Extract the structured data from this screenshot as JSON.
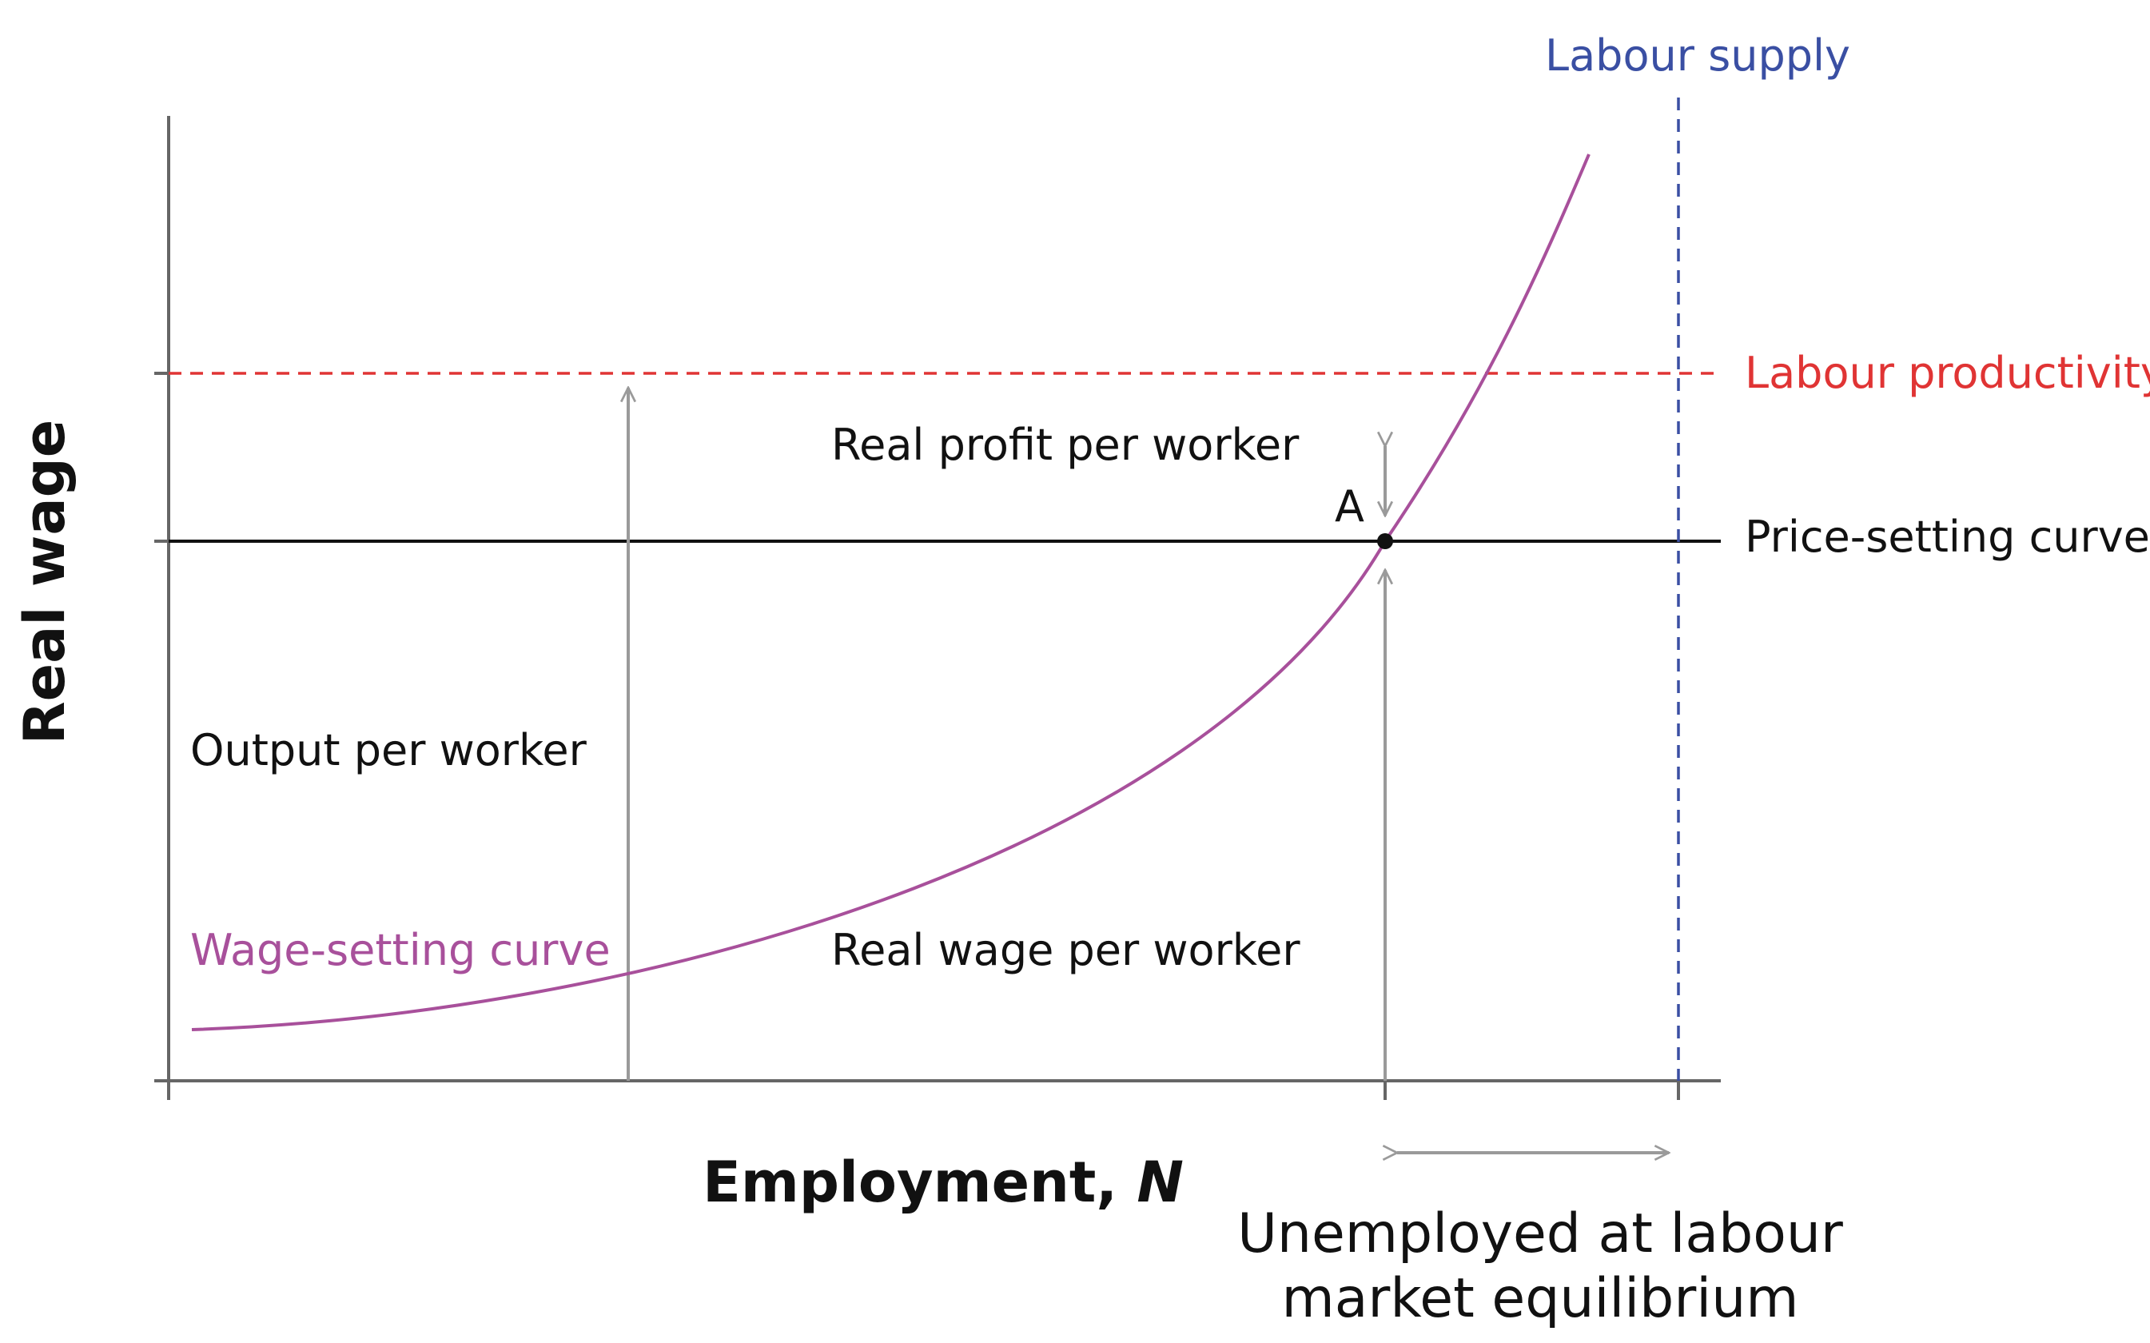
{
  "diagram": {
    "y_axis_title": "Real wage",
    "x_axis_title_main": "Employment, ",
    "x_axis_title_var": "N",
    "labels": {
      "labour_supply": "Labour supply",
      "labour_productivity": "Labour productivity",
      "price_setting_curve": "Price-setting curve",
      "real_profit": "Real profit per worker",
      "point_a": "A",
      "output_per_worker": "Output per worker",
      "wage_setting_curve": "Wage-setting curve",
      "real_wage_per_worker": "Real wage per worker",
      "unemployed_line1": "Unemployed at labour",
      "unemployed_line2": "market equilibrium"
    },
    "colors": {
      "wage_setting": "#a8509b",
      "labour_productivity": "#e03434",
      "labour_supply": "#3a4fa3",
      "price_setting": "#111111",
      "arrows": "#9a9a9a",
      "axes": "#666666"
    }
  }
}
